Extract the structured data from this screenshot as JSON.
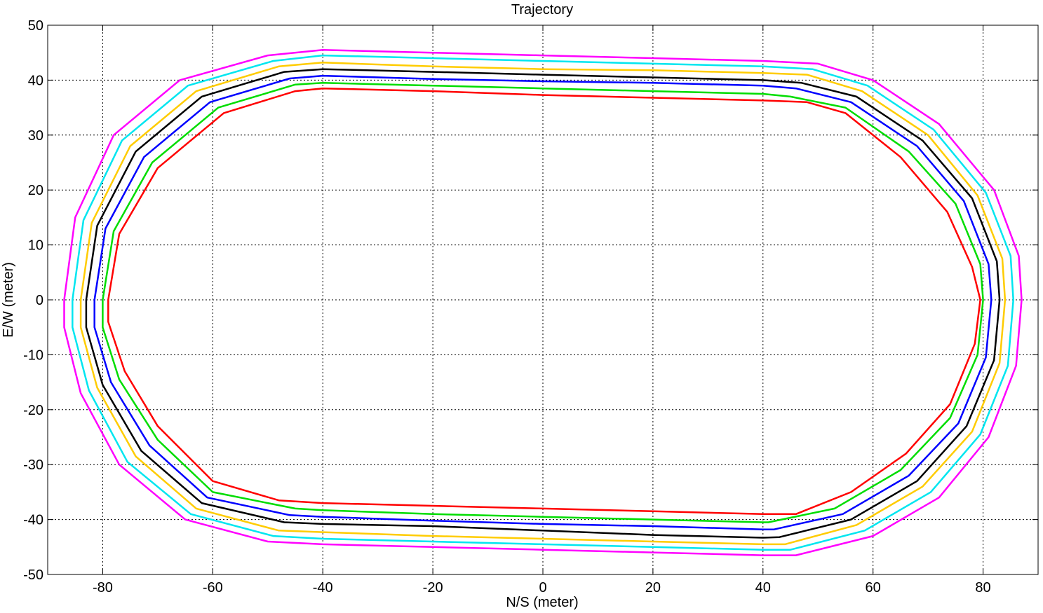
{
  "chart_data": {
    "type": "line",
    "title": "Trajectory",
    "xlabel": "N/S (meter)",
    "ylabel": "E/W (meter)",
    "xlim": [
      -90,
      90
    ],
    "ylim": [
      -50,
      50
    ],
    "xticks": [
      -80,
      -60,
      -40,
      -20,
      0,
      20,
      40,
      60,
      80
    ],
    "yticks": [
      -50,
      -40,
      -30,
      -20,
      -10,
      0,
      10,
      20,
      30,
      40,
      50
    ],
    "grid": true,
    "series": [
      {
        "color": "#ff00ff",
        "points": [
          [
            -87,
            0
          ],
          [
            -85,
            15
          ],
          [
            -78,
            30
          ],
          [
            -66,
            40
          ],
          [
            -50,
            44.5
          ],
          [
            -40,
            45.5
          ],
          [
            -20,
            45
          ],
          [
            0,
            44.5
          ],
          [
            20,
            44
          ],
          [
            40,
            43.5
          ],
          [
            50,
            43
          ],
          [
            60,
            40
          ],
          [
            72,
            32
          ],
          [
            82,
            20
          ],
          [
            86.5,
            8
          ],
          [
            87,
            0
          ],
          [
            86,
            -12
          ],
          [
            81,
            -25
          ],
          [
            72,
            -36
          ],
          [
            60,
            -43
          ],
          [
            46,
            -46.5
          ],
          [
            40,
            -46.5
          ],
          [
            20,
            -46
          ],
          [
            0,
            -45.5
          ],
          [
            -20,
            -45
          ],
          [
            -40,
            -44.5
          ],
          [
            -50,
            -44
          ],
          [
            -65,
            -40
          ],
          [
            -77,
            -30
          ],
          [
            -84,
            -17
          ],
          [
            -87,
            -5
          ],
          [
            -87,
            0
          ]
        ]
      },
      {
        "color": "#00e6f0",
        "points": [
          [
            -85.5,
            0
          ],
          [
            -83.5,
            14.5
          ],
          [
            -76.5,
            29
          ],
          [
            -64.5,
            39
          ],
          [
            -49,
            43.5
          ],
          [
            -40,
            44.5
          ],
          [
            -20,
            44
          ],
          [
            0,
            43.5
          ],
          [
            20,
            43
          ],
          [
            40,
            42.5
          ],
          [
            49,
            42
          ],
          [
            59,
            39
          ],
          [
            71,
            31
          ],
          [
            80.5,
            19.5
          ],
          [
            85,
            8
          ],
          [
            85.5,
            0
          ],
          [
            84.5,
            -12
          ],
          [
            79.5,
            -24.5
          ],
          [
            70.5,
            -35
          ],
          [
            58.5,
            -42
          ],
          [
            45,
            -45.5
          ],
          [
            40,
            -45.5
          ],
          [
            20,
            -45
          ],
          [
            0,
            -44.5
          ],
          [
            -20,
            -44
          ],
          [
            -40,
            -43.5
          ],
          [
            -49,
            -43
          ],
          [
            -64,
            -39
          ],
          [
            -75.5,
            -29.5
          ],
          [
            -82.5,
            -16.5
          ],
          [
            -85.5,
            -5
          ],
          [
            -85.5,
            0
          ]
        ]
      },
      {
        "color": "#ffcc00",
        "points": [
          [
            -84,
            0
          ],
          [
            -82,
            14
          ],
          [
            -75,
            28
          ],
          [
            -63,
            38
          ],
          [
            -48,
            42.5
          ],
          [
            -40,
            43.2
          ],
          [
            -20,
            42.5
          ],
          [
            0,
            42
          ],
          [
            20,
            41.8
          ],
          [
            40,
            41.3
          ],
          [
            48,
            41
          ],
          [
            58,
            38
          ],
          [
            70,
            30
          ],
          [
            79,
            19
          ],
          [
            83.5,
            7.5
          ],
          [
            84,
            0
          ],
          [
            83,
            -11.5
          ],
          [
            78,
            -24
          ],
          [
            69,
            -34
          ],
          [
            57,
            -41
          ],
          [
            44,
            -44.5
          ],
          [
            40,
            -44.5
          ],
          [
            20,
            -44
          ],
          [
            0,
            -43.5
          ],
          [
            -20,
            -43
          ],
          [
            -40,
            -42.3
          ],
          [
            -48,
            -42
          ],
          [
            -63,
            -38
          ],
          [
            -74,
            -28.5
          ],
          [
            -81,
            -16
          ],
          [
            -84,
            -5
          ],
          [
            -84,
            0
          ]
        ]
      },
      {
        "color": "#000000",
        "points": [
          [
            -83,
            0
          ],
          [
            -81,
            13.5
          ],
          [
            -74,
            27
          ],
          [
            -62,
            37
          ],
          [
            -47,
            41.5
          ],
          [
            -40,
            42
          ],
          [
            -20,
            41.5
          ],
          [
            0,
            41
          ],
          [
            20,
            40.5
          ],
          [
            40,
            40
          ],
          [
            47,
            39.5
          ],
          [
            57,
            37
          ],
          [
            69,
            29
          ],
          [
            78,
            18.5
          ],
          [
            82.5,
            7
          ],
          [
            83,
            0
          ],
          [
            82,
            -11
          ],
          [
            77,
            -23
          ],
          [
            68,
            -33
          ],
          [
            56,
            -40
          ],
          [
            43,
            -43.2
          ],
          [
            40,
            -43.3
          ],
          [
            20,
            -42.8
          ],
          [
            0,
            -42
          ],
          [
            -20,
            -41.2
          ],
          [
            -40,
            -40.8
          ],
          [
            -47,
            -40.5
          ],
          [
            -62,
            -37
          ],
          [
            -73,
            -27.5
          ],
          [
            -80,
            -15.5
          ],
          [
            -83,
            -5
          ],
          [
            -83,
            0
          ]
        ]
      },
      {
        "color": "#0000ff",
        "points": [
          [
            -81.5,
            0
          ],
          [
            -79.5,
            13
          ],
          [
            -72.5,
            26
          ],
          [
            -60.5,
            36
          ],
          [
            -46,
            40.3
          ],
          [
            -40,
            40.8
          ],
          [
            -20,
            40.2
          ],
          [
            0,
            39.8
          ],
          [
            20,
            39.5
          ],
          [
            40,
            39
          ],
          [
            46,
            38.5
          ],
          [
            56,
            36
          ],
          [
            68,
            28
          ],
          [
            76.5,
            18
          ],
          [
            81,
            6.5
          ],
          [
            81.5,
            0
          ],
          [
            80.5,
            -10.5
          ],
          [
            75.5,
            -22.5
          ],
          [
            66.5,
            -32
          ],
          [
            54.5,
            -39
          ],
          [
            42,
            -41.8
          ],
          [
            40,
            -41.8
          ],
          [
            20,
            -41.2
          ],
          [
            0,
            -40.8
          ],
          [
            -20,
            -40.2
          ],
          [
            -40,
            -39.5
          ],
          [
            -46,
            -39.2
          ],
          [
            -61,
            -36
          ],
          [
            -71.5,
            -26.5
          ],
          [
            -78.5,
            -15
          ],
          [
            -81.5,
            -5
          ],
          [
            -81.5,
            0
          ]
        ]
      },
      {
        "color": "#00dd00",
        "points": [
          [
            -80,
            0
          ],
          [
            -78,
            12.5
          ],
          [
            -71,
            25
          ],
          [
            -59,
            35
          ],
          [
            -45,
            39.2
          ],
          [
            -40,
            39.5
          ],
          [
            -20,
            39
          ],
          [
            0,
            38.5
          ],
          [
            20,
            38
          ],
          [
            40,
            37.5
          ],
          [
            45,
            37
          ],
          [
            55,
            35
          ],
          [
            66.5,
            27
          ],
          [
            75,
            17.5
          ],
          [
            79.5,
            6.5
          ],
          [
            80,
            0
          ],
          [
            79,
            -10
          ],
          [
            74,
            -21.5
          ],
          [
            65,
            -31
          ],
          [
            53,
            -38
          ],
          [
            41,
            -40.5
          ],
          [
            40,
            -40.5
          ],
          [
            20,
            -40
          ],
          [
            0,
            -39.5
          ],
          [
            -20,
            -39
          ],
          [
            -40,
            -38.3
          ],
          [
            -45,
            -38
          ],
          [
            -60,
            -35
          ],
          [
            -70,
            -25.5
          ],
          [
            -77,
            -14.5
          ],
          [
            -80,
            -5
          ],
          [
            -80,
            0
          ]
        ]
      },
      {
        "color": "#ff0000",
        "points": [
          [
            -79,
            0
          ],
          [
            -77,
            12
          ],
          [
            -70,
            24
          ],
          [
            -58,
            34
          ],
          [
            -45,
            38
          ],
          [
            -40,
            38.5
          ],
          [
            -20,
            38
          ],
          [
            0,
            37.3
          ],
          [
            20,
            36.8
          ],
          [
            40,
            36.3
          ],
          [
            48,
            36
          ],
          [
            55,
            34
          ],
          [
            65,
            26
          ],
          [
            73.5,
            16
          ],
          [
            78,
            6
          ],
          [
            79.5,
            0
          ],
          [
            78.5,
            -8
          ],
          [
            74,
            -19
          ],
          [
            66,
            -28
          ],
          [
            56,
            -35
          ],
          [
            46,
            -39
          ],
          [
            40,
            -39
          ],
          [
            20,
            -38.5
          ],
          [
            0,
            -38
          ],
          [
            -20,
            -37.5
          ],
          [
            -40,
            -37
          ],
          [
            -48,
            -36.5
          ],
          [
            -60,
            -33
          ],
          [
            -70,
            -23
          ],
          [
            -76,
            -13
          ],
          [
            -79,
            -4
          ],
          [
            -79,
            0
          ]
        ]
      }
    ]
  }
}
